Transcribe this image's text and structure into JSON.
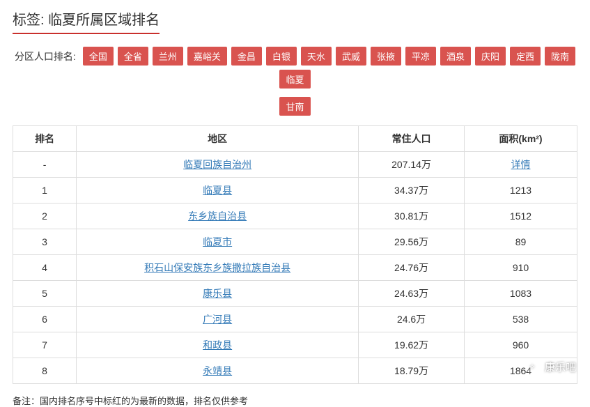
{
  "title": {
    "prefix": "标签:",
    "text": "临夏所属区域排名"
  },
  "filter": {
    "label": "分区人口排名:",
    "tags_row1": [
      "全国",
      "全省",
      "兰州",
      "嘉峪关",
      "金昌",
      "白银",
      "天水",
      "武威",
      "张掖",
      "平凉",
      "酒泉",
      "庆阳",
      "定西",
      "陇南",
      "临夏"
    ],
    "tags_row2": [
      "甘南"
    ]
  },
  "table": {
    "headers": {
      "rank": "排名",
      "region": "地区",
      "population": "常住人口",
      "area": "面积(km²)"
    },
    "rows": [
      {
        "rank": "-",
        "region": "临夏回族自治州",
        "population": "207.14万",
        "area": "详情",
        "area_is_link": true
      },
      {
        "rank": "1",
        "region": "临夏县",
        "population": "34.37万",
        "area": "1213"
      },
      {
        "rank": "2",
        "region": "东乡族自治县",
        "population": "30.81万",
        "area": "1512"
      },
      {
        "rank": "3",
        "region": "临夏市",
        "population": "29.56万",
        "area": "89"
      },
      {
        "rank": "4",
        "region": "积石山保安族东乡族撒拉族自治县",
        "population": "24.76万",
        "area": "910"
      },
      {
        "rank": "5",
        "region": "康乐县",
        "population": "24.63万",
        "area": "1083"
      },
      {
        "rank": "6",
        "region": "广河县",
        "population": "24.6万",
        "area": "538"
      },
      {
        "rank": "7",
        "region": "和政县",
        "population": "19.62万",
        "area": "960"
      },
      {
        "rank": "8",
        "region": "永靖县",
        "population": "18.79万",
        "area": "1864"
      }
    ]
  },
  "footnote": "备注：国内排名序号中标红的为最新的数据，排名仅供参考",
  "watermark": {
    "icon": "✧",
    "text": "康乐吧"
  },
  "style": {
    "accent": "#d9534f",
    "underline": "#c9302c",
    "link": "#337ab7",
    "border": "#dddddd",
    "text": "#333333",
    "bg": "#ffffff"
  }
}
